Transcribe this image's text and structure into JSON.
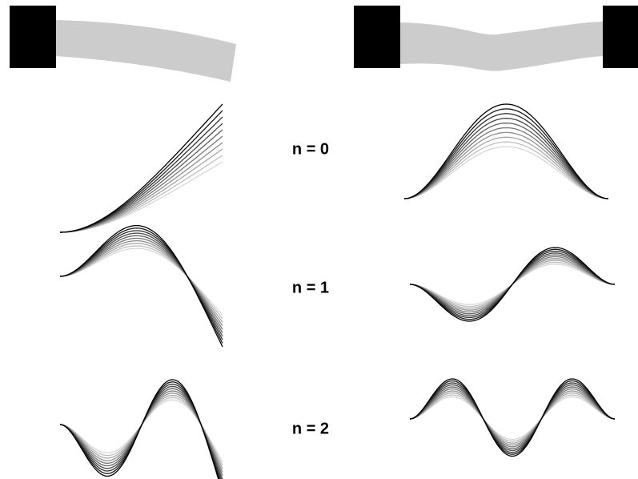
{
  "modes": [
    {
      "label": "n = 0"
    },
    {
      "label": "n = 1"
    },
    {
      "label": "n = 2"
    }
  ]
}
